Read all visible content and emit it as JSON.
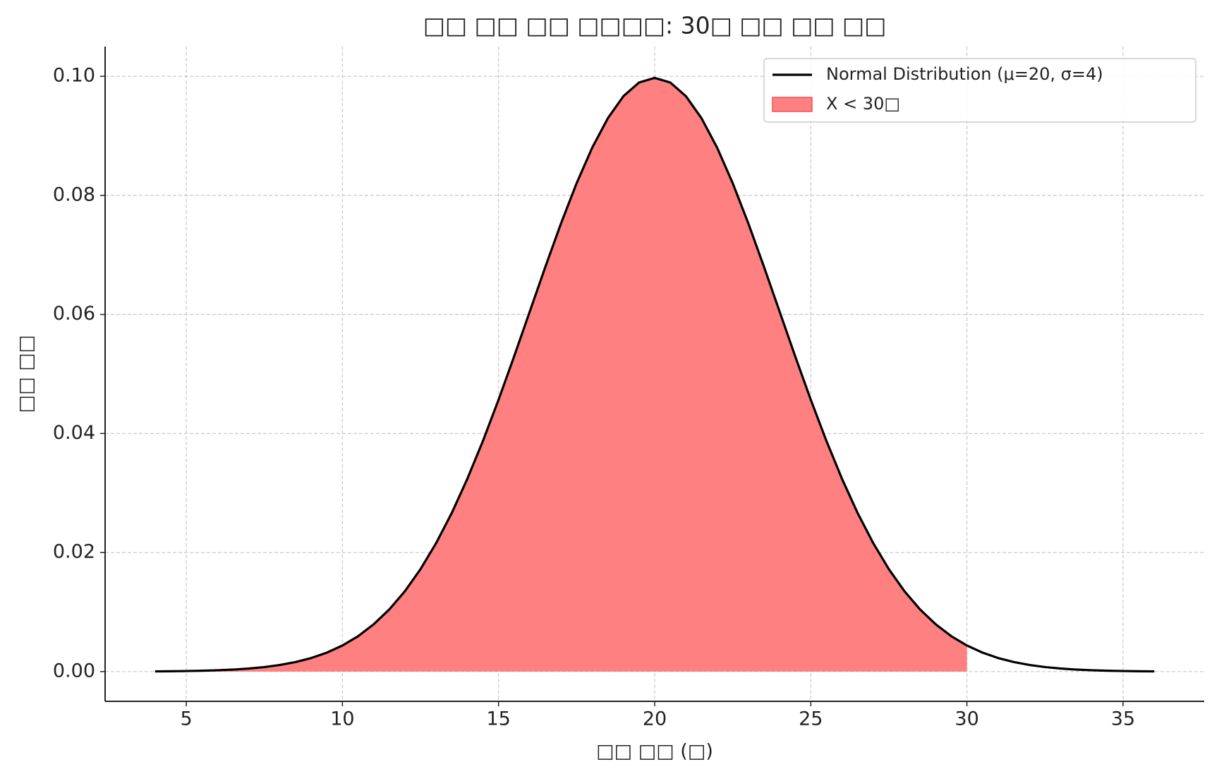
{
  "chart_data": {
    "type": "area-line",
    "title": "□□ □□ □□ □□□□: 30□ □□ □□ □□",
    "x_label": "□□ □□ (□)",
    "y_label": "□□ □□",
    "x": [
      4,
      4.5,
      5,
      5.5,
      6,
      6.5,
      7,
      7.5,
      8,
      8.5,
      9,
      9.5,
      10,
      10.5,
      11,
      11.5,
      12,
      12.5,
      13,
      13.5,
      14,
      14.5,
      15,
      15.5,
      16,
      16.5,
      17,
      17.5,
      18,
      18.5,
      19,
      19.5,
      20,
      20.5,
      21,
      21.5,
      22,
      22.5,
      23,
      23.5,
      24,
      24.5,
      25,
      25.5,
      26,
      26.5,
      27,
      27.5,
      28,
      28.5,
      29,
      29.5,
      30,
      30.5,
      31,
      31.5,
      32,
      32.5,
      33,
      33.5,
      34,
      34.5,
      35,
      35.5,
      36
    ],
    "series": [
      {
        "name": "Normal Distribution (μ=20, σ=4)",
        "color": "#000000",
        "style": "line",
        "values": [
          3e-05,
          5e-05,
          9e-05,
          0.00014,
          0.00022,
          0.00033,
          0.00051,
          0.00076,
          0.00111,
          0.0016,
          0.00227,
          0.00318,
          0.00438,
          0.00594,
          0.00794,
          0.01043,
          0.0135,
          0.0172,
          0.02157,
          0.02663,
          0.03238,
          0.03875,
          0.04566,
          0.05297,
          0.06049,
          0.06801,
          0.07528,
          0.08204,
          0.08802,
          0.09296,
          0.09667,
          0.09896,
          0.09974,
          0.09896,
          0.09667,
          0.09296,
          0.08802,
          0.08204,
          0.07528,
          0.06801,
          0.06049,
          0.05297,
          0.04566,
          0.03875,
          0.03238,
          0.02663,
          0.02157,
          0.0172,
          0.0135,
          0.01043,
          0.00794,
          0.00594,
          0.00438,
          0.00318,
          0.00227,
          0.0016,
          0.00111,
          0.00076,
          0.00051,
          0.00033,
          0.00022,
          0.00014,
          9e-05,
          5e-05,
          3e-05
        ]
      },
      {
        "name": "X < 30□",
        "color": "#ff8080",
        "style": "area",
        "values": [
          3e-05,
          5e-05,
          9e-05,
          0.00014,
          0.00022,
          0.00033,
          0.00051,
          0.00076,
          0.00111,
          0.0016,
          0.00227,
          0.00318,
          0.00438,
          0.00594,
          0.00794,
          0.01043,
          0.0135,
          0.0172,
          0.02157,
          0.02663,
          0.03238,
          0.03875,
          0.04566,
          0.05297,
          0.06049,
          0.06801,
          0.07528,
          0.08204,
          0.08802,
          0.09296,
          0.09667,
          0.09896,
          0.09974,
          0.09896,
          0.09667,
          0.09296,
          0.08802,
          0.08204,
          0.07528,
          0.06801,
          0.06049,
          0.05297,
          0.04566,
          0.03875,
          0.03238,
          0.02663,
          0.02157,
          0.0172,
          0.0135,
          0.01043,
          0.00794,
          0.00594,
          0.00438,
          null,
          null,
          null,
          null,
          null,
          null,
          null,
          null,
          null,
          null,
          null,
          null
        ]
      }
    ],
    "xlim": [
      2.4,
      37.6
    ],
    "ylim": [
      -0.005,
      0.105
    ],
    "xticks": [
      5,
      10,
      15,
      20,
      25,
      30,
      35
    ],
    "yticks": [
      {
        "value": 0,
        "label": "0.00"
      },
      {
        "value": 0.02,
        "label": "0.02"
      },
      {
        "value": 0.04,
        "label": "0.04"
      },
      {
        "value": 0.06,
        "label": "0.06"
      },
      {
        "value": 0.08,
        "label": "0.08"
      },
      {
        "value": 0.1,
        "label": "0.10"
      }
    ],
    "grid": true,
    "legend": "upper right"
  }
}
